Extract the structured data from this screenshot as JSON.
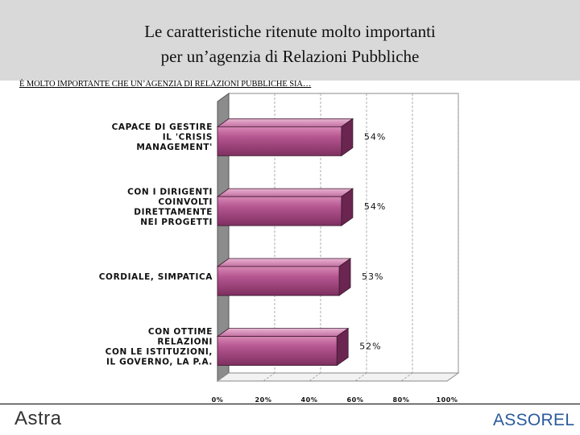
{
  "header": {
    "title_line1": "Le caratteristiche ritenute molto importanti",
    "title_line2": "per un’agenzia di Relazioni Pubbliche"
  },
  "subtitle": "È MOLTO IMPORTANTE CHE UN’AGENZIA DI RELAZIONI PUBBLICHE SIA…",
  "chart_data": {
    "type": "bar",
    "orientation": "horizontal",
    "categories": [
      [
        "CAPACE DI GESTIRE",
        "IL 'CRISIS",
        "MANAGEMENT'"
      ],
      [
        "CON I DIRIGENTI",
        "COINVOLTI",
        "DIRETTAMENTE",
        "NEI PROGETTI"
      ],
      [
        "CORDIALE, SIMPATICA"
      ],
      [
        "CON OTTIME",
        "RELAZIONI",
        "CON LE ISTITUZIONI,",
        "IL GOVERNO, LA P.A."
      ]
    ],
    "values": [
      54,
      54,
      53,
      52
    ],
    "value_labels": [
      "54%",
      "54%",
      "53%",
      "52%"
    ],
    "xlim": [
      0,
      100
    ],
    "ticks": [
      0,
      20,
      40,
      60,
      80,
      100
    ],
    "tick_labels": [
      "0%",
      "20%",
      "40%",
      "60%",
      "80%",
      "100%"
    ],
    "grid": true,
    "legend": "none",
    "bar_color": "#a84a7e"
  },
  "footer": {
    "logo_left": "Astra",
    "logo_right": "ASSOREL"
  }
}
